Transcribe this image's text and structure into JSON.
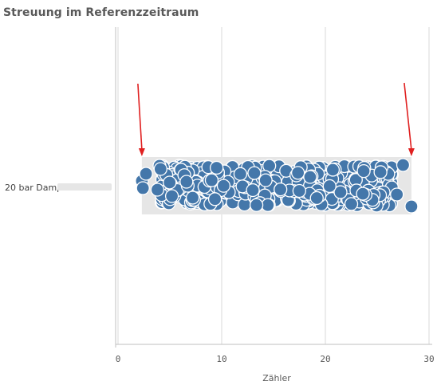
{
  "header": {
    "title": "Streuung im Referenzzeitraum"
  },
  "chart_data": {
    "type": "scatter",
    "title": "Streuung im Referenzzeitraum",
    "xlabel": "Zähler",
    "ylabel": "",
    "xlim": [
      0,
      30
    ],
    "xticks": [
      0,
      10,
      20,
      30
    ],
    "grid": true,
    "categories": [
      "20 bar Damp"
    ],
    "range_box": {
      "category": "20 bar Damp",
      "min": 2.3,
      "max": 28.3
    },
    "series": [
      {
        "category": "20 bar Damp",
        "point_color": "#4477aa",
        "x_min": 2.3,
        "x_max": 28.3,
        "approx_point_count": 520,
        "notable_points": [
          2.3,
          2.6,
          4.0,
          27.5,
          28.3
        ]
      }
    ],
    "annotations": [
      {
        "type": "arrow",
        "color": "#e02020",
        "points_to_x": 2.3
      },
      {
        "type": "arrow",
        "color": "#e02020",
        "points_to_x": 28.3
      }
    ]
  }
}
